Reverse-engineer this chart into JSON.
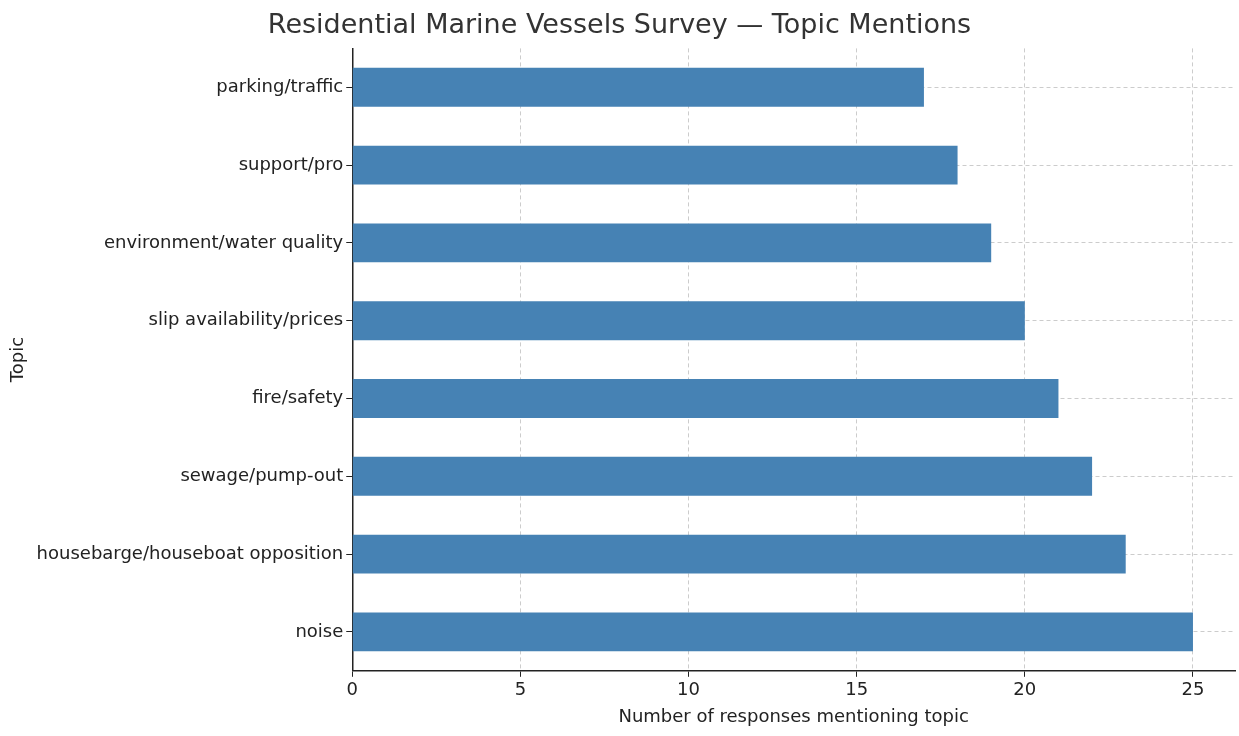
{
  "chart_data": {
    "type": "bar",
    "orientation": "horizontal",
    "title": "Residential Marine Vessels Survey — Topic Mentions",
    "xlabel": "Number of responses mentioning topic",
    "ylabel": "Topic",
    "categories": [
      "parking/traffic",
      "support/pro",
      "environment/water quality",
      "slip availability/prices",
      "fire/safety",
      "sewage/pump-out",
      "housebarge/houseboat opposition",
      "noise"
    ],
    "values": [
      17,
      18,
      19,
      20,
      21,
      22,
      23,
      25
    ],
    "color": "#4682b4",
    "xlim": [
      0,
      26.25
    ],
    "xticks": [
      0,
      5,
      10,
      15,
      20,
      25
    ],
    "grid": true,
    "legend": false
  }
}
